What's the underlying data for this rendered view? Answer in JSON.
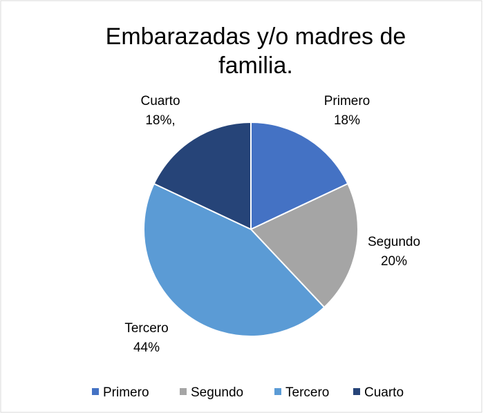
{
  "chart_data": {
    "type": "pie",
    "title": "Embarazadas y/o madres de familia.",
    "categories": [
      "Primero",
      "Segundo",
      "Tercero",
      "Cuarto"
    ],
    "values": [
      18,
      20,
      44,
      18
    ],
    "value_labels": [
      "18%",
      "20%",
      "44%",
      "18%,"
    ],
    "colors": [
      "#4472c4",
      "#a5a5a5",
      "#5b9bd5",
      "#264478"
    ],
    "legend": "bottom"
  }
}
